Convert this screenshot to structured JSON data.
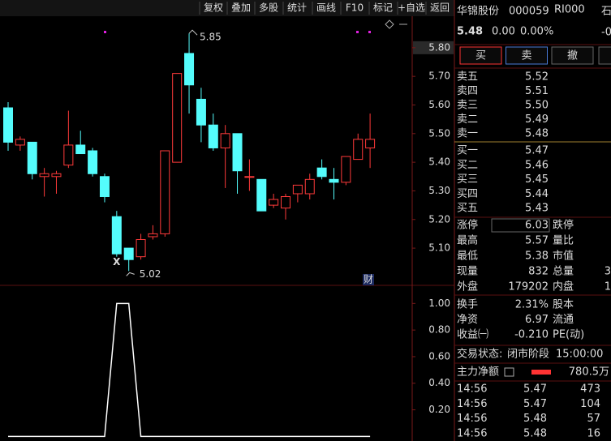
{
  "toolbar": [
    "复权",
    "叠加",
    "多股",
    "统计",
    "画线",
    "F10",
    "标记",
    "+自选",
    "返回"
  ],
  "kline": {
    "type": "candlestick",
    "ylim": [
      4.97,
      5.91
    ],
    "yticks": [
      {
        "value": 5.1,
        "label": "5.10"
      },
      {
        "value": 5.2,
        "label": "5.20"
      },
      {
        "value": 5.3,
        "label": "5.30"
      },
      {
        "value": 5.4,
        "label": "5.40"
      },
      {
        "value": 5.5,
        "label": "5.50"
      },
      {
        "value": 5.6,
        "label": "5.60"
      },
      {
        "value": 5.7,
        "label": "5.70"
      },
      {
        "value": 5.8,
        "label": "5.80"
      }
    ],
    "open": [
      5.59,
      5.46,
      5.47,
      5.35,
      5.35,
      5.39,
      5.46,
      5.44,
      5.35,
      5.21,
      5.1,
      5.07,
      5.14,
      5.15,
      5.4,
      5.78,
      5.62,
      5.53,
      5.45,
      5.5,
      5.35,
      5.34,
      5.25,
      5.24,
      5.29,
      5.29,
      5.38,
      5.34,
      5.33,
      5.41,
      5.45
    ],
    "high": [
      5.61,
      5.49,
      5.47,
      5.38,
      5.37,
      5.58,
      5.51,
      5.45,
      5.36,
      5.23,
      5.1,
      5.15,
      5.18,
      5.44,
      5.71,
      5.85,
      5.66,
      5.57,
      5.53,
      5.5,
      5.41,
      5.34,
      5.29,
      5.29,
      5.32,
      5.36,
      5.41,
      5.38,
      5.42,
      5.5,
      5.57
    ],
    "low": [
      5.44,
      5.44,
      5.34,
      5.28,
      5.29,
      5.38,
      5.43,
      5.35,
      5.26,
      5.07,
      5.02,
      5.06,
      5.13,
      5.14,
      5.4,
      5.57,
      5.47,
      5.44,
      5.31,
      5.29,
      5.3,
      5.23,
      5.24,
      5.2,
      5.26,
      5.27,
      5.34,
      5.27,
      5.32,
      5.41,
      5.38
    ],
    "close": [
      5.47,
      5.48,
      5.36,
      5.36,
      5.36,
      5.46,
      5.43,
      5.36,
      5.28,
      5.08,
      5.06,
      5.13,
      5.15,
      5.44,
      5.71,
      5.67,
      5.53,
      5.45,
      5.5,
      5.37,
      5.35,
      5.23,
      5.27,
      5.28,
      5.32,
      5.34,
      5.35,
      5.33,
      5.42,
      5.48,
      5.48
    ],
    "up_color": "#ff3a3a",
    "down_color": "#54fcfc",
    "annotations": [
      "5.85",
      "5.02"
    ],
    "marker": "X",
    "badge": "财"
  },
  "indicator": {
    "type": "line",
    "ylim": [
      -0.01,
      1.13
    ],
    "yticks": [
      {
        "value": 0.2,
        "label": "0.20"
      },
      {
        "value": 0.4,
        "label": "0.40"
      },
      {
        "value": 0.6,
        "label": "0.60"
      },
      {
        "value": 0.8,
        "label": "0.80"
      },
      {
        "value": 1.0,
        "label": "1.00"
      }
    ],
    "values": [
      0,
      0,
      0,
      0,
      0,
      0,
      0,
      0,
      0,
      1,
      1,
      0,
      0,
      0,
      0,
      0,
      0,
      0,
      0,
      0,
      0,
      0,
      0,
      0,
      0,
      0,
      0,
      0,
      0,
      0,
      0
    ],
    "color": "#ffffff"
  },
  "quote": {
    "name": "华锦股份",
    "code": "000059",
    "tag": "RI000",
    "price": "5.48",
    "change": "0.00",
    "change_pct": "0.00%",
    "edge": [
      "石",
      "-0"
    ]
  },
  "buttons": [
    "买",
    "卖",
    "撤"
  ],
  "book": {
    "asks": [
      {
        "label": "卖五",
        "price": "5.52"
      },
      {
        "label": "卖四",
        "price": "5.51"
      },
      {
        "label": "卖三",
        "price": "5.50"
      },
      {
        "label": "卖二",
        "price": "5.49"
      },
      {
        "label": "卖一",
        "price": "5.48"
      }
    ],
    "bids": [
      {
        "label": "买一",
        "price": "5.47"
      },
      {
        "label": "买二",
        "price": "5.46"
      },
      {
        "label": "买三",
        "price": "5.45"
      },
      {
        "label": "买四",
        "price": "5.44"
      },
      {
        "label": "买五",
        "price": "5.43"
      }
    ]
  },
  "stats": [
    {
      "label": "涨停",
      "value": "6.03",
      "label2": "跌停"
    },
    {
      "label": "最高",
      "value": "5.57",
      "label2": "量比"
    },
    {
      "label": "最低",
      "value": "5.38",
      "label2": "市值"
    },
    {
      "label": "现量",
      "value": "832",
      "label2": "总量",
      "value2": "3"
    },
    {
      "label": "外盘",
      "value": "179202",
      "label2": "内盘",
      "value2": "1"
    }
  ],
  "finance": [
    {
      "label": "换手",
      "value": "2.31%",
      "label2": "股本"
    },
    {
      "label": "净资",
      "value": "6.97",
      "label2": "流通"
    },
    {
      "label": "收益㈠",
      "value": "-0.210",
      "label2": "PE(动)"
    }
  ],
  "status": {
    "label": "交易状态:",
    "value": "闭市阶段",
    "time": "15:00:00"
  },
  "flow": {
    "label": "主力净额",
    "value": "780.5万"
  },
  "trades": [
    [
      "14:56",
      "5.47",
      "473"
    ],
    [
      "14:56",
      "5.47",
      "104"
    ],
    [
      "14:56",
      "5.48",
      "57"
    ],
    [
      "14:56",
      "5.48",
      "16"
    ]
  ]
}
